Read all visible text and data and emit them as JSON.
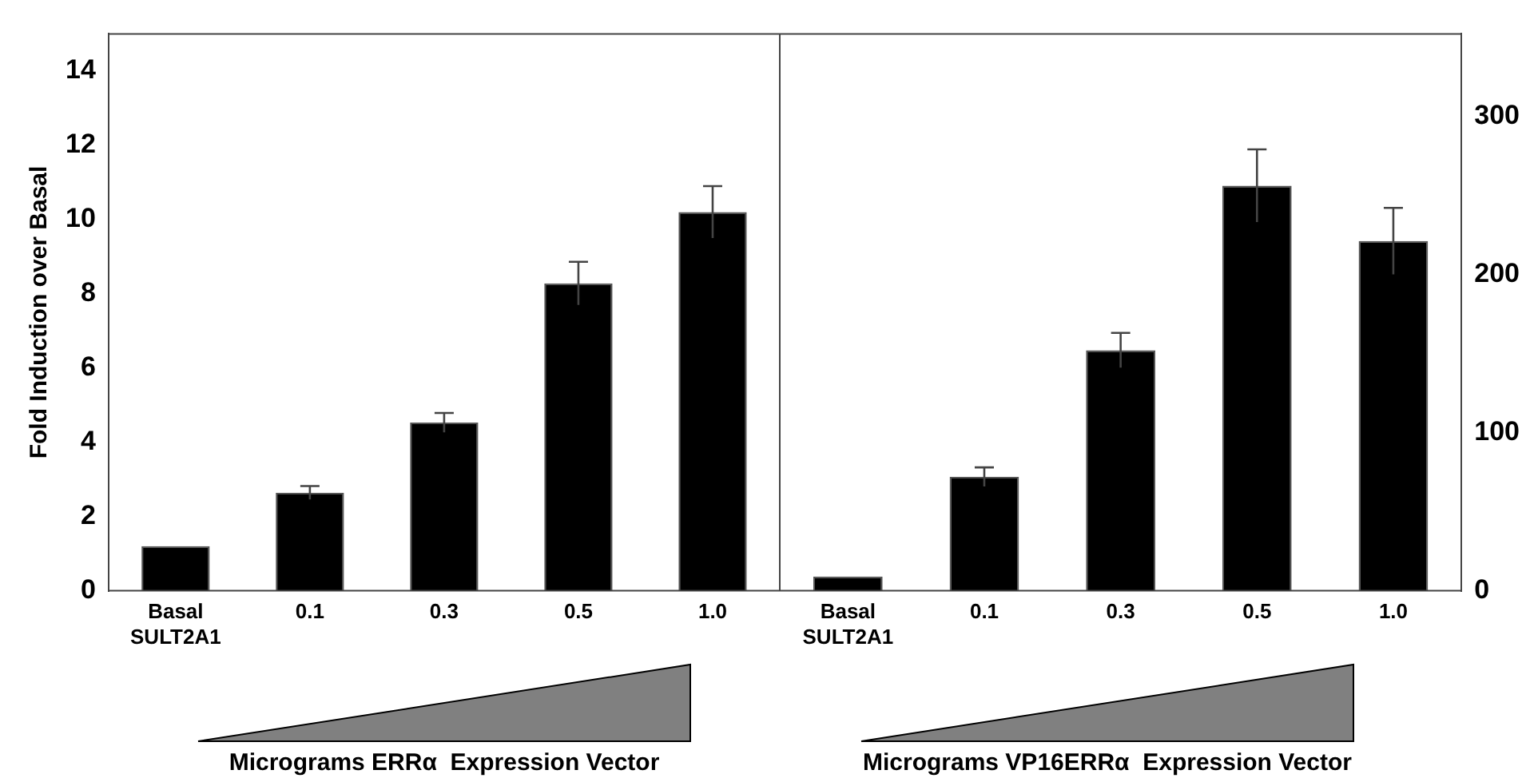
{
  "chart_data": [
    {
      "type": "bar",
      "ylabel": "Fold Induction over Basal",
      "xlabel": "Micrograms ERRα  Expression Vector",
      "categories": [
        "Basal\nSULT2A1",
        "0.1",
        "0.3",
        "0.5",
        "1.0"
      ],
      "series": [
        {
          "color": "#000000",
          "values": [
            1.2,
            2.64,
            4.53,
            8.28,
            10.2
          ],
          "errors": [
            null,
            0.18,
            0.26,
            0.58,
            0.7
          ]
        }
      ],
      "ylim": [
        0,
        15
      ],
      "yticks": [
        0,
        2,
        4,
        6,
        8,
        10,
        12,
        14
      ]
    },
    {
      "type": "bar",
      "xlabel": "Micrograms VP16ERRα  Expression Vector",
      "categories": [
        "Basal\nSULT2A1",
        "0.1",
        "0.3",
        "0.5",
        "1.0"
      ],
      "series": [
        {
          "color": "#000000",
          "axis": "y2",
          "values": [
            9,
            72,
            152,
            256,
            221
          ],
          "errors": [
            null,
            6,
            11,
            23,
            21
          ]
        }
      ],
      "y2lim": [
        0,
        352
      ],
      "y2ticks": [
        0,
        100,
        200,
        300
      ]
    }
  ]
}
